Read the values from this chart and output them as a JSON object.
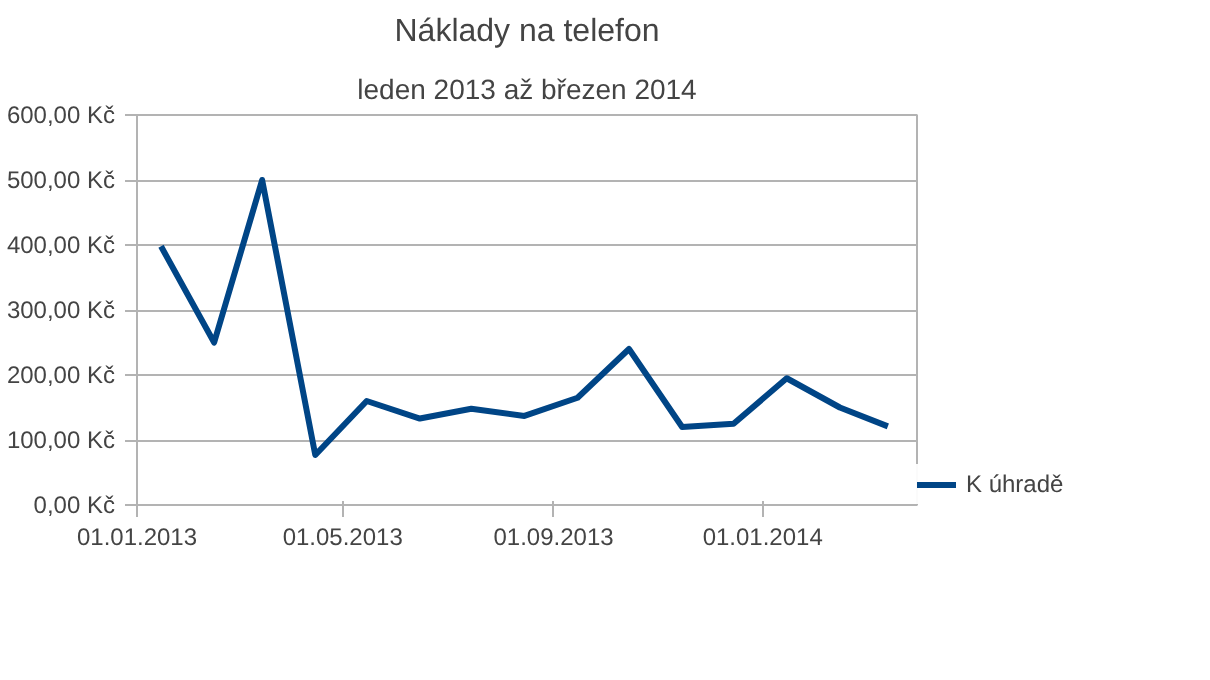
{
  "chart_data": {
    "type": "line",
    "title": "Náklady na telefon",
    "subtitle": "leden 2013 až březen 2014",
    "x": [
      "2013-01-15",
      "2013-02-15",
      "2013-03-15",
      "2013-04-15",
      "2013-05-15",
      "2013-06-15",
      "2013-07-15",
      "2013-08-15",
      "2013-09-15",
      "2013-10-15",
      "2013-11-15",
      "2013-12-15",
      "2014-01-15",
      "2014-02-15",
      "2014-03-15"
    ],
    "series": [
      {
        "name": "K úhradě",
        "color": "#004586",
        "values": [
          398,
          250,
          500,
          77,
          160,
          133,
          148,
          137,
          165,
          240,
          120,
          125,
          195,
          150,
          121
        ]
      }
    ],
    "xlim": [
      "2013-01-01",
      "2014-04-01"
    ],
    "xticks": [
      {
        "value": "2013-01-01",
        "label": "01.01.2013"
      },
      {
        "value": "2013-05-01",
        "label": "01.05.2013"
      },
      {
        "value": "2013-09-01",
        "label": "01.09.2013"
      },
      {
        "value": "2014-01-01",
        "label": "01.01.2014"
      }
    ],
    "ylim": [
      0,
      600
    ],
    "yticks": [
      {
        "value": 0,
        "label": "0,00 Kč"
      },
      {
        "value": 100,
        "label": "100,00 Kč"
      },
      {
        "value": 200,
        "label": "200,00 Kč"
      },
      {
        "value": 300,
        "label": "300,00 Kč"
      },
      {
        "value": 400,
        "label": "400,00 Kč"
      },
      {
        "value": 500,
        "label": "500,00 Kč"
      },
      {
        "value": 600,
        "label": "600,00 Kč"
      }
    ],
    "grid": "y",
    "legend": "right",
    "marker": "none",
    "line_style": "solid"
  }
}
